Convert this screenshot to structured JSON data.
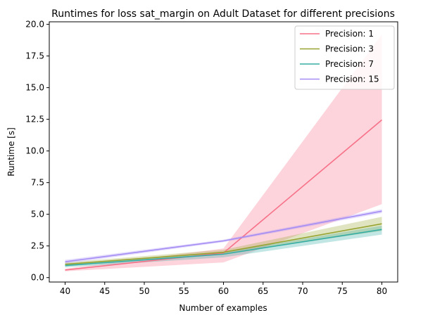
{
  "chart_data": {
    "type": "line",
    "title": "Runtimes for loss sat_margin on Adult Dataset for different precisions",
    "xlabel": "Number of examples",
    "ylabel": "Runtime [s]",
    "xlim": [
      38,
      82
    ],
    "ylim": [
      -0.35,
      20.2
    ],
    "xticks": [
      40,
      45,
      50,
      55,
      60,
      65,
      70,
      75,
      80
    ],
    "yticks": [
      0.0,
      2.5,
      5.0,
      7.5,
      10.0,
      12.5,
      15.0,
      17.5,
      20.0
    ],
    "xtick_labels": [
      "40",
      "45",
      "50",
      "55",
      "60",
      "65",
      "70",
      "75",
      "80"
    ],
    "ytick_labels": [
      "0.0",
      "2.5",
      "5.0",
      "7.5",
      "10.0",
      "12.5",
      "15.0",
      "17.5",
      "20.0"
    ],
    "grid": false,
    "legend_position": "top-right",
    "x": [
      40,
      60,
      80
    ],
    "series": [
      {
        "name": "Precision: 1",
        "color": "#f77189",
        "values": [
          0.6,
          1.95,
          12.45
        ],
        "ci_low": [
          0.5,
          1.2,
          5.8
        ],
        "ci_high": [
          0.7,
          2.3,
          19.2
        ]
      },
      {
        "name": "Precision: 3",
        "color": "#97a431",
        "values": [
          1.05,
          2.0,
          4.25
        ],
        "ci_low": [
          0.9,
          1.85,
          3.7
        ],
        "ci_high": [
          1.2,
          2.2,
          4.8
        ]
      },
      {
        "name": "Precision: 7",
        "color": "#36ada4",
        "values": [
          0.95,
          1.85,
          3.8
        ],
        "ci_low": [
          0.8,
          1.6,
          3.4
        ],
        "ci_high": [
          1.1,
          2.0,
          4.1
        ]
      },
      {
        "name": "Precision: 15",
        "color": "#a48cf4",
        "values": [
          1.25,
          2.9,
          5.25
        ],
        "ci_low": [
          1.1,
          2.8,
          5.1
        ],
        "ci_high": [
          1.4,
          3.0,
          5.4
        ]
      }
    ]
  }
}
